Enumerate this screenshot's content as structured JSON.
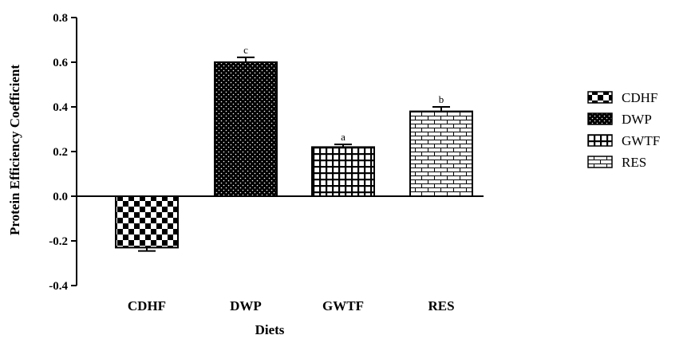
{
  "chart_data": {
    "type": "bar",
    "title": "",
    "xlabel": "Diets",
    "ylabel": "Protein Efficiency Coefficient",
    "ylim": [
      -0.4,
      0.8
    ],
    "yticks": [
      "-0.4",
      "-0.2",
      "0.0",
      "0.2",
      "0.4",
      "0.6",
      "0.8"
    ],
    "yticks_values": [
      -0.4,
      -0.2,
      0.0,
      0.2,
      0.4,
      0.6,
      0.8
    ],
    "categories": [
      "CDHF",
      "DWP",
      "GWTF",
      "RES"
    ],
    "values": [
      -0.23,
      0.6,
      0.22,
      0.38
    ],
    "errors": [
      0.015,
      0.022,
      0.012,
      0.02
    ],
    "significance": [
      "",
      "c",
      "a",
      "b"
    ],
    "patterns": [
      "checker-pattern",
      "dot-pattern",
      "grid-pattern",
      "brick-pattern"
    ],
    "legend": {
      "position": "right",
      "entries": [
        "CDHF",
        "DWP",
        "GWTF",
        "RES"
      ]
    },
    "grid": false
  }
}
